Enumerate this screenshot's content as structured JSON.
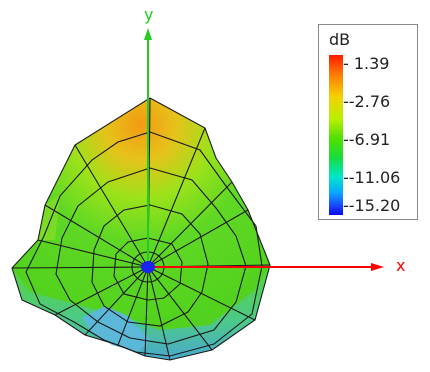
{
  "axes": {
    "y_label": "y",
    "x_label": "x",
    "y_color": "#22cc22",
    "x_color": "#ff0000"
  },
  "legend": {
    "title": "dB",
    "ticks": [
      "- 1.39",
      "--2.76",
      "--6.91",
      "--11.06",
      "--15.20"
    ]
  },
  "colors": {
    "surface_green": "#66dd22",
    "surface_orange": "#e89a10",
    "surface_blue": "#4ab0d8",
    "mesh_line": "#1a1a1a",
    "origin_marker": "#1a22ee"
  }
}
